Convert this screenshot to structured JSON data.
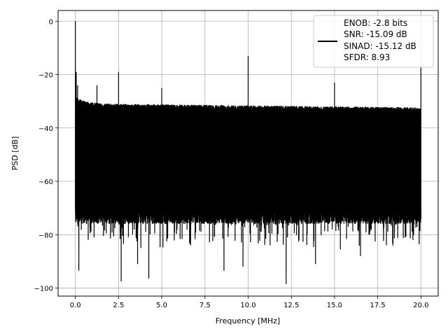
{
  "chart_data": {
    "type": "line",
    "title": "",
    "xlabel": "Frequency [MHz]",
    "ylabel": "PSD [dB]",
    "xlim": [
      -1.0,
      21.0
    ],
    "ylim": [
      -103,
      4
    ],
    "xticks": [
      0.0,
      2.5,
      5.0,
      7.5,
      10.0,
      12.5,
      15.0,
      17.5,
      20.0
    ],
    "xtick_labels": [
      "0.0",
      "2.5",
      "5.0",
      "7.5",
      "10.0",
      "12.5",
      "15.0",
      "17.5",
      "20.0"
    ],
    "yticks": [
      0,
      -20,
      -40,
      -60,
      -80,
      -100
    ],
    "ytick_labels": [
      "0",
      "−20",
      "−40",
      "−60",
      "−80",
      "−100"
    ],
    "grid": true,
    "legend_position": "upper-right",
    "series": [
      {
        "name": "",
        "color": "#000000",
        "legend_lines": [
          "ENOB: -2.8 bits",
          "SNR: -15.09 dB",
          "SINAD: -15.12 dB",
          "SFDR: 8.93"
        ],
        "noise_floor_top_db": -33,
        "noise_floor_bottom_db": -70,
        "frequency_range_mhz": [
          0.0,
          20.0
        ],
        "peaks": [
          {
            "x": 0.0,
            "y": 0.0
          },
          {
            "x": 0.05,
            "y": -19
          },
          {
            "x": 0.13,
            "y": -24
          },
          {
            "x": 1.25,
            "y": -24
          },
          {
            "x": 2.5,
            "y": -19
          },
          {
            "x": 5.0,
            "y": -25
          },
          {
            "x": 10.0,
            "y": -13
          },
          {
            "x": 15.0,
            "y": -23
          },
          {
            "x": 20.0,
            "y": -17
          }
        ],
        "dips": [
          {
            "x": 0.2,
            "y": -93.5
          },
          {
            "x": 2.65,
            "y": -97.5
          },
          {
            "x": 4.25,
            "y": -96.5
          },
          {
            "x": 8.6,
            "y": -93.5
          },
          {
            "x": 12.2,
            "y": -98.5
          },
          {
            "x": 13.9,
            "y": -91
          },
          {
            "x": 9.7,
            "y": -92
          },
          {
            "x": 3.6,
            "y": -91
          },
          {
            "x": 16.5,
            "y": -88
          }
        ]
      }
    ]
  }
}
